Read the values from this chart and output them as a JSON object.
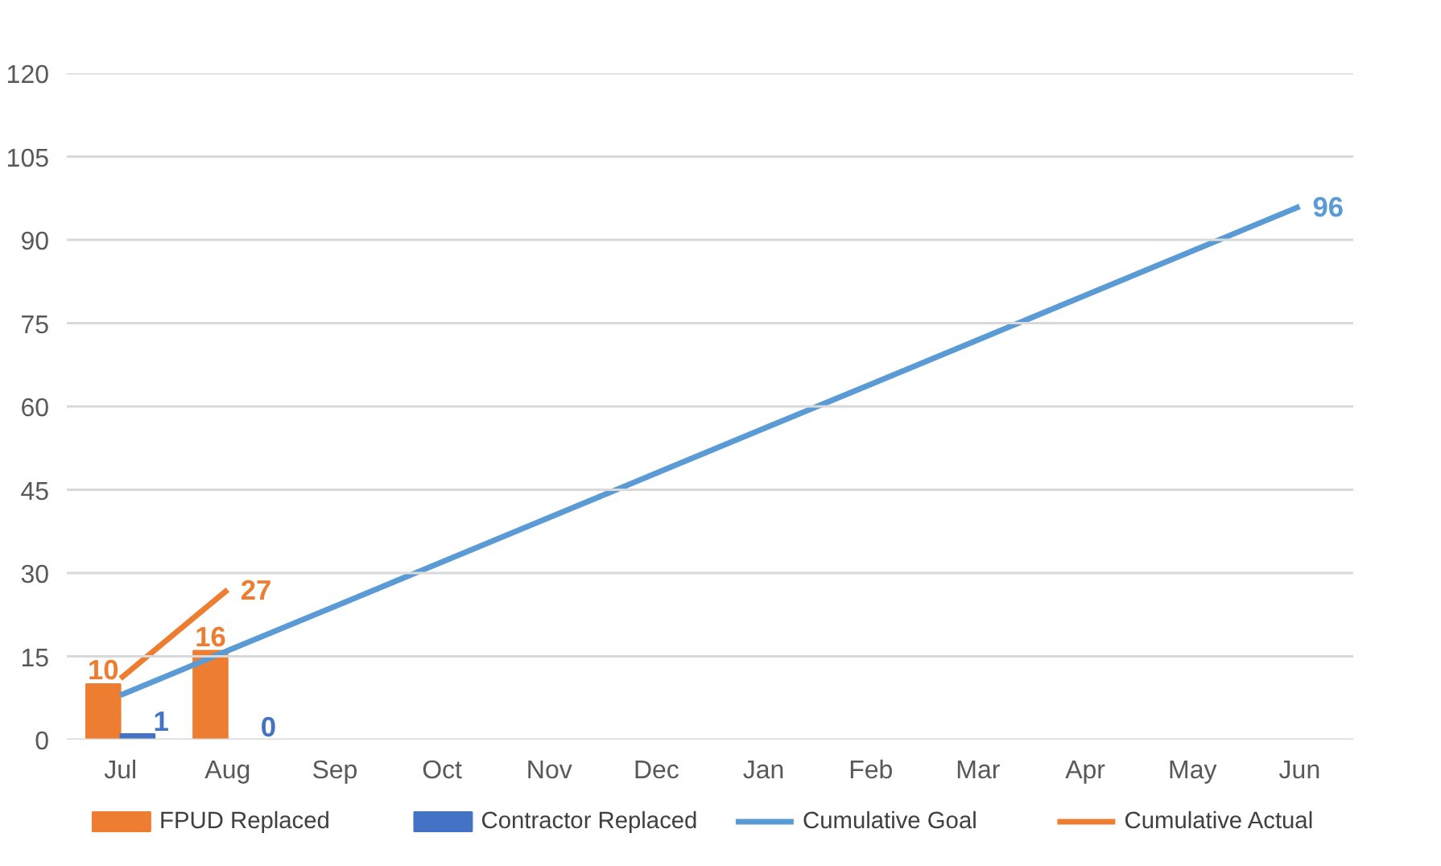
{
  "chart_data": {
    "type": "bar",
    "categories": [
      "Jul",
      "Aug",
      "Sep",
      "Oct",
      "Nov",
      "Dec",
      "Jan",
      "Feb",
      "Mar",
      "Apr",
      "May",
      "Jun"
    ],
    "series": [
      {
        "name": "FPUD Replaced",
        "color": "#ed7d31",
        "values": [
          10,
          16,
          null,
          null,
          null,
          null,
          null,
          null,
          null,
          null,
          null,
          null
        ],
        "value_labels": [
          "10",
          "16",
          null,
          null,
          null,
          null,
          null,
          null,
          null,
          null,
          null,
          null
        ]
      },
      {
        "name": "Contractor Replaced",
        "color": "#4472c4",
        "values": [
          1,
          0,
          null,
          null,
          null,
          null,
          null,
          null,
          null,
          null,
          null,
          null
        ],
        "value_labels": [
          "1",
          "0",
          null,
          null,
          null,
          null,
          null,
          null,
          null,
          null,
          null,
          null
        ]
      },
      {
        "name": "Cumulative Goal",
        "type": "line",
        "color": "#5b9bd5",
        "values": [
          8,
          16,
          24,
          32,
          40,
          48,
          56,
          64,
          72,
          80,
          88,
          96
        ],
        "value_labels": [
          null,
          null,
          null,
          null,
          null,
          null,
          null,
          null,
          null,
          null,
          null,
          "96"
        ]
      },
      {
        "name": "Cumulative Actual",
        "type": "line",
        "color": "#ed7d31",
        "values": [
          11,
          27,
          null,
          null,
          null,
          null,
          null,
          null,
          null,
          null,
          null,
          null
        ],
        "value_labels": [
          null,
          "27",
          null,
          null,
          null,
          null,
          null,
          null,
          null,
          null,
          null,
          null
        ]
      }
    ],
    "ylim": [
      0,
      120
    ],
    "yticks": [
      0,
      15,
      30,
      45,
      60,
      75,
      90,
      105,
      120
    ],
    "grid": "y",
    "legend": "bottom"
  }
}
